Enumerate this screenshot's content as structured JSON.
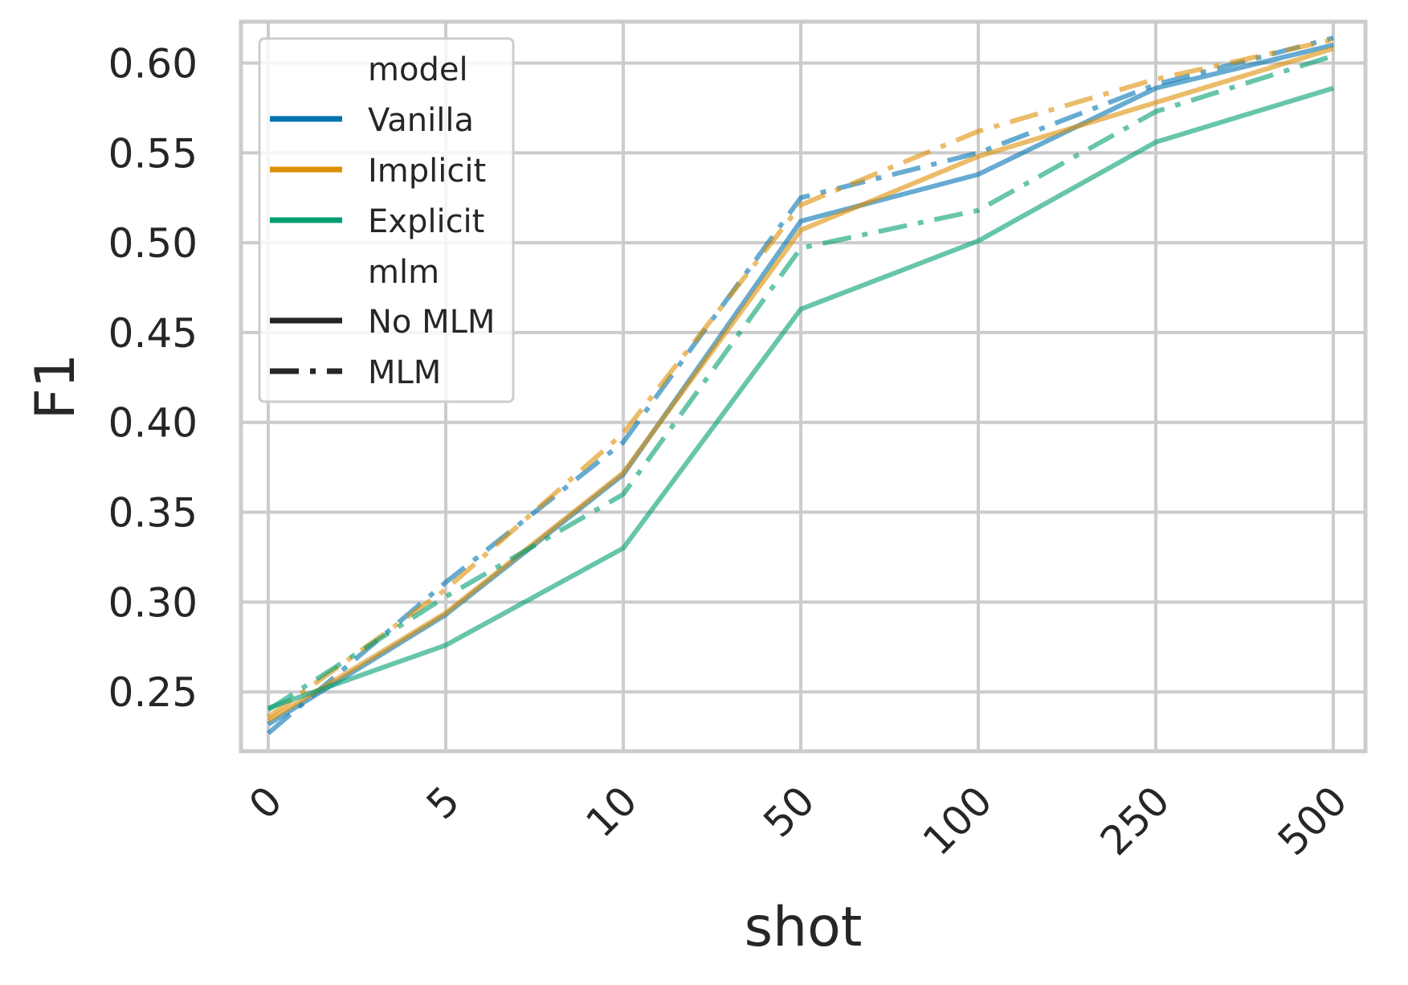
{
  "chart_data": {
    "type": "line",
    "xlabel": "shot",
    "ylabel": "F1",
    "categories": [
      "0",
      "5",
      "10",
      "50",
      "100",
      "250",
      "500"
    ],
    "yticks": [
      "0.25",
      "0.30",
      "0.35",
      "0.40",
      "0.45",
      "0.50",
      "0.55",
      "0.60"
    ],
    "ylim": [
      0.217,
      0.623
    ],
    "grid": true,
    "legend_position": "top-left",
    "legend": {
      "model_title": "model",
      "mlm_title": "mlm",
      "models": [
        {
          "label": "Vanilla",
          "color": "#0173b2"
        },
        {
          "label": "Implicit",
          "color": "#de8f05"
        },
        {
          "label": "Explicit",
          "color": "#029e73"
        }
      ],
      "styles": [
        {
          "label": "No MLM",
          "dash": "solid"
        },
        {
          "label": "MLM",
          "dash": "dashdot"
        }
      ]
    },
    "series": [
      {
        "model": "Vanilla",
        "mlm": "No MLM",
        "color": "#0173b2",
        "dash": "solid",
        "values": [
          0.232,
          0.293,
          0.371,
          0.512,
          0.538,
          0.586,
          0.61
        ]
      },
      {
        "model": "Vanilla",
        "mlm": "MLM",
        "color": "#0173b2",
        "dash": "dashdot",
        "values": [
          0.227,
          0.311,
          0.389,
          0.525,
          0.55,
          0.588,
          0.614
        ]
      },
      {
        "model": "Implicit",
        "mlm": "No MLM",
        "color": "#de8f05",
        "dash": "solid",
        "values": [
          0.234,
          0.294,
          0.372,
          0.507,
          0.548,
          0.578,
          0.608
        ]
      },
      {
        "model": "Implicit",
        "mlm": "MLM",
        "color": "#de8f05",
        "dash": "dashdot",
        "values": [
          0.236,
          0.307,
          0.394,
          0.521,
          0.562,
          0.591,
          0.613
        ]
      },
      {
        "model": "Explicit",
        "mlm": "No MLM",
        "color": "#029e73",
        "dash": "solid",
        "values": [
          0.241,
          0.276,
          0.33,
          0.463,
          0.501,
          0.556,
          0.586
        ]
      },
      {
        "model": "Explicit",
        "mlm": "MLM",
        "color": "#029e73",
        "dash": "dashdot",
        "values": [
          0.24,
          0.303,
          0.36,
          0.497,
          0.518,
          0.573,
          0.604
        ]
      }
    ]
  }
}
